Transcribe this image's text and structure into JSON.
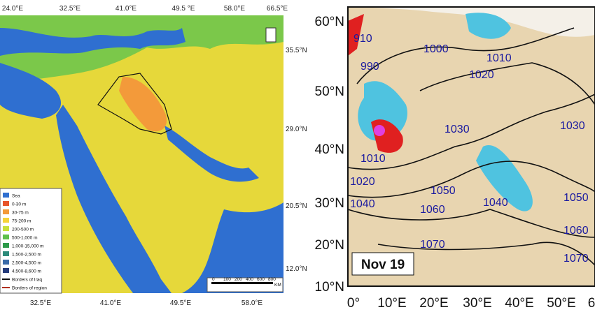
{
  "left_map": {
    "top_longitudes": [
      "24.0°E",
      "32.5°E",
      "41.0°E",
      "49.5 °E",
      "58.0°E",
      "66.5°E"
    ],
    "right_latitudes": [
      "35.5°N",
      "29.0°N",
      "20.5°N",
      "12.0°N"
    ],
    "bottom_longitudes": [
      "32.5°E",
      "41.0°E",
      "49.5°E",
      "58.0°E"
    ],
    "legend": [
      {
        "label": "Sea",
        "color": "#2f6fd0"
      },
      {
        "label": "0-30 m",
        "color": "#e8552a"
      },
      {
        "label": "30-75 m",
        "color": "#f39a3a"
      },
      {
        "label": "75-200 m",
        "color": "#f6d33a"
      },
      {
        "label": "200-500 m",
        "color": "#c8e03a"
      },
      {
        "label": "500-1,000 m",
        "color": "#5fc04a"
      },
      {
        "label": "1,000-15,000 m",
        "color": "#2e9a4a"
      },
      {
        "label": "1,500-2,500 m",
        "color": "#2c8a7a"
      },
      {
        "label": "2,500-4,500 m",
        "color": "#3a6aa8"
      },
      {
        "label": "4,500-8,600 m",
        "color": "#243a7a"
      },
      {
        "label": "Borders of Iraq",
        "color": "#111111"
      },
      {
        "label": "Borders of region",
        "color": "#b03020"
      }
    ],
    "scale_labels": [
      "0",
      "100",
      "200",
      "400",
      "600",
      "800"
    ],
    "scale_unit": "KM"
  },
  "right_map": {
    "latitudes": [
      "60°N",
      "50°N",
      "40°N",
      "30°N",
      "20°N",
      "10°N"
    ],
    "longitudes": [
      "0°",
      "10°E",
      "20°E",
      "30°E",
      "40°E",
      "50°E",
      "6"
    ],
    "contour_labels": [
      "910",
      "990",
      "1000",
      "1010",
      "1020",
      "1030",
      "1030",
      "1010",
      "1020",
      "1040",
      "1050",
      "1060",
      "1040",
      "1050",
      "1060",
      "1070",
      "1070"
    ],
    "date": "Nov 19"
  }
}
